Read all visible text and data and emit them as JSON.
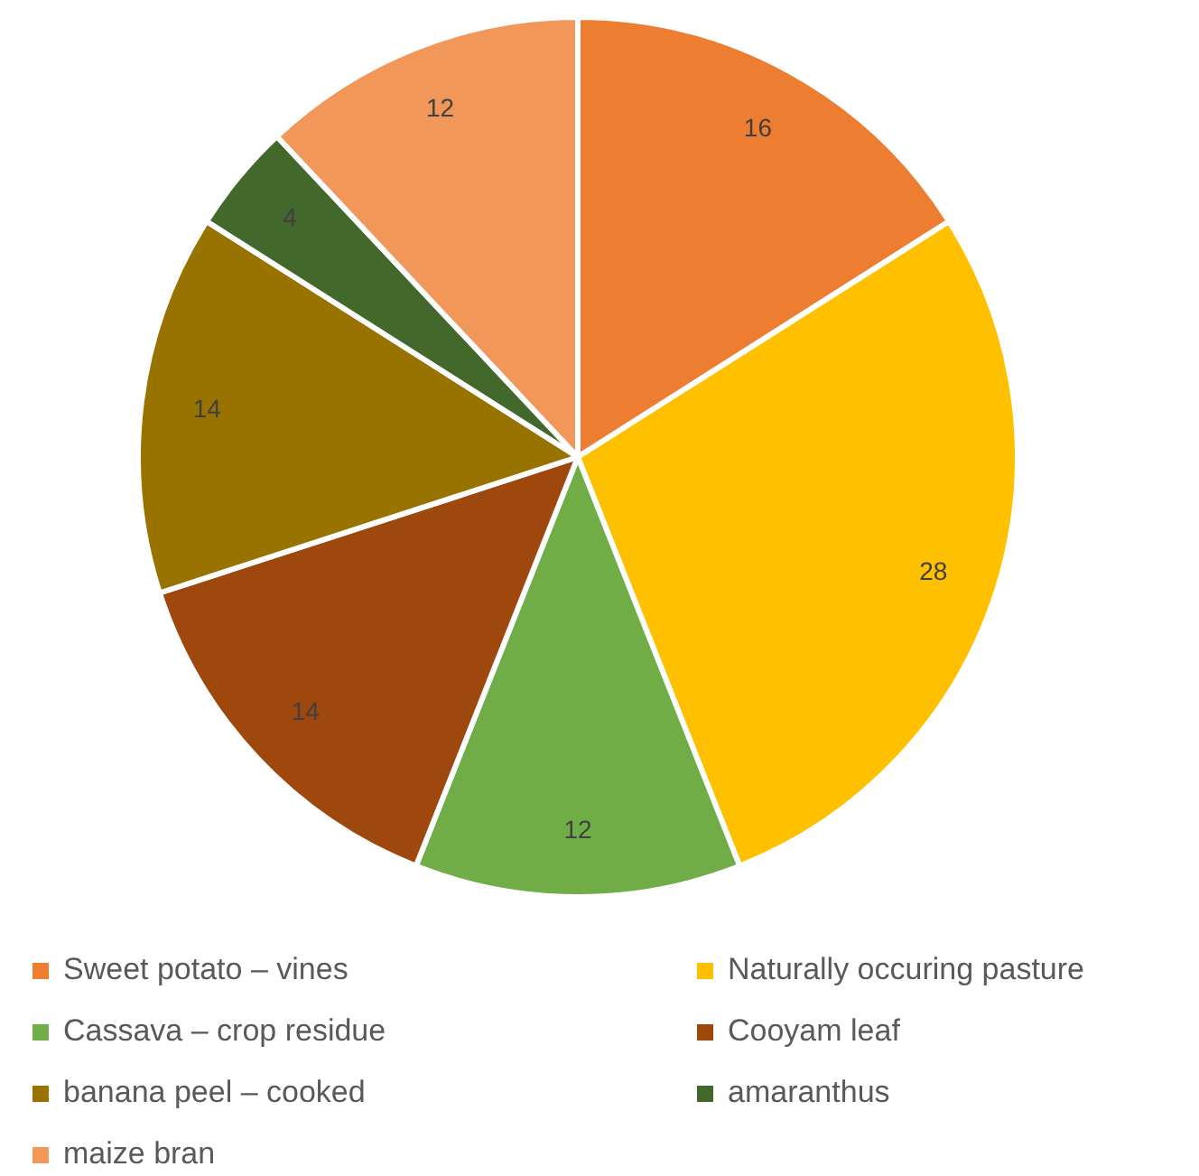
{
  "chart_data": {
    "type": "pie",
    "categories": [
      "Sweet potato – vines",
      "Naturally occuring pasture",
      "Cassava – crop residue",
      "Cooyam leaf",
      "banana peel – cooked",
      "amaranthus",
      "maize bran"
    ],
    "values": [
      16,
      28,
      12,
      14,
      14,
      4,
      12
    ],
    "colors": [
      "#ed7d31",
      "#ffc000",
      "#70ad47",
      "#9e480e",
      "#997300",
      "#43682b",
      "#f1975a"
    ],
    "data_labels": true,
    "legend": "bottom"
  }
}
